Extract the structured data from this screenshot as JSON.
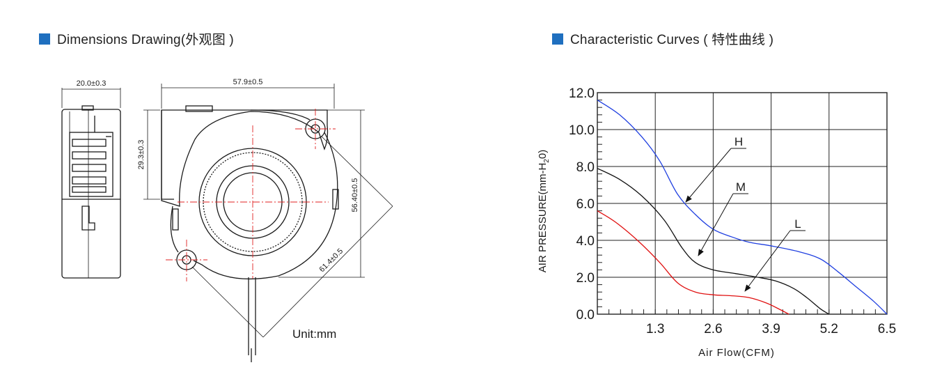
{
  "left_section": {
    "title": "Dimensions Drawing(外观图 )",
    "dims": {
      "side_width": "20.0±0.3",
      "front_width": "57.9±0.5",
      "height": "29.3±0.3",
      "hole_span_v": "56.40±0.5",
      "hole_span_d": "61.4±0.5"
    },
    "unit": "Unit:mm"
  },
  "right_section": {
    "title": "Characteristic Curves ( 特性曲线 )"
  },
  "colors": {
    "accent": "#1f6fbf",
    "H": "#1f3fe0",
    "M": "#111111",
    "L": "#e01010",
    "centerline": "#e02020"
  },
  "chart_data": {
    "type": "line",
    "xlabel": "Air Flow(CFM)",
    "ylabel": "AIR PRESSURE(mm-H2O)",
    "ylabel_parts": {
      "pre": "AIR PRESSURE(mm-H",
      "sub": "2",
      "post": "0)"
    },
    "xlim": [
      0,
      6.5
    ],
    "ylim": [
      0,
      12
    ],
    "x_ticks": [
      "1.3",
      "2.6",
      "3.9",
      "5.2",
      "6.5"
    ],
    "y_ticks": [
      "0.0",
      "2.0",
      "4.0",
      "6.0",
      "8.0",
      "10.0",
      "12.0"
    ],
    "grid": true,
    "series": [
      {
        "name": "H",
        "x": [
          0,
          0.5,
          1.0,
          1.4,
          1.8,
          2.2,
          2.6,
          3.0,
          3.4,
          3.9,
          4.5,
          5.0,
          5.4,
          5.8,
          6.2,
          6.5
        ],
        "y": [
          11.6,
          10.8,
          9.6,
          8.3,
          6.5,
          5.4,
          4.6,
          4.2,
          3.9,
          3.7,
          3.4,
          3.0,
          2.3,
          1.5,
          0.7,
          0.0
        ]
      },
      {
        "name": "M",
        "x": [
          0,
          0.5,
          1.0,
          1.5,
          1.9,
          2.2,
          2.6,
          3.1,
          3.6,
          4.0,
          4.4,
          4.7,
          5.0,
          5.2
        ],
        "y": [
          7.9,
          7.3,
          6.4,
          5.1,
          3.6,
          2.8,
          2.4,
          2.2,
          2.0,
          1.8,
          1.4,
          0.9,
          0.3,
          0.0
        ]
      },
      {
        "name": "L",
        "x": [
          0,
          0.4,
          0.9,
          1.4,
          1.8,
          2.2,
          2.6,
          3.0,
          3.4,
          3.8,
          4.1,
          4.3
        ],
        "y": [
          5.6,
          5.0,
          4.0,
          2.8,
          1.7,
          1.2,
          1.05,
          1.0,
          0.9,
          0.6,
          0.25,
          0.0
        ]
      }
    ]
  }
}
